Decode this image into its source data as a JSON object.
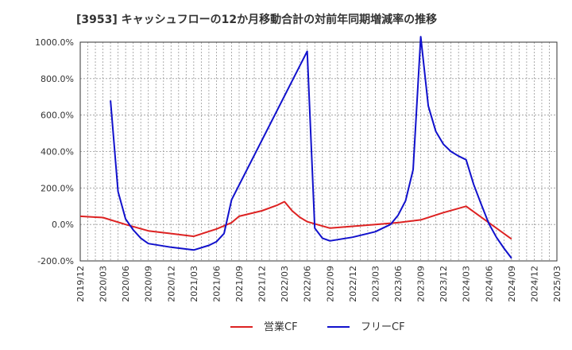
{
  "chart_data": {
    "type": "line",
    "title": "[3953]  キャッシュフローの12か月移動合計の対前年同期増減率の推移",
    "xlabel": "",
    "ylabel": "",
    "ylim": [
      -200,
      1000
    ],
    "y_ticks": [
      1000,
      800,
      600,
      400,
      200,
      0,
      -200
    ],
    "y_tick_labels": [
      "1000.0%",
      "800.0%",
      "600.0%",
      "400.0%",
      "200.0%",
      "0.0%",
      "-200.0%"
    ],
    "x_range": [
      "2019/12",
      "2025/03"
    ],
    "x_tick_labels": [
      "2019/12",
      "2020/03",
      "2020/06",
      "2020/09",
      "2020/12",
      "2021/03",
      "2021/06",
      "2021/09",
      "2021/12",
      "2022/03",
      "2022/06",
      "2022/09",
      "2022/12",
      "2023/03",
      "2023/06",
      "2023/09",
      "2023/12",
      "2024/03",
      "2024/06",
      "2024/09",
      "2024/12",
      "2025/03"
    ],
    "grid": true,
    "legend_position": "bottom-center",
    "series": [
      {
        "name": "営業CF",
        "color": "#dd2222",
        "points": [
          {
            "x": "2019/12",
            "y": 45
          },
          {
            "x": "2020/02",
            "y": 40
          },
          {
            "x": "2020/03",
            "y": 38
          },
          {
            "x": "2020/06",
            "y": 0
          },
          {
            "x": "2020/09",
            "y": -35
          },
          {
            "x": "2020/12",
            "y": -50
          },
          {
            "x": "2021/03",
            "y": -65
          },
          {
            "x": "2021/06",
            "y": -25
          },
          {
            "x": "2021/08",
            "y": 10
          },
          {
            "x": "2021/09",
            "y": 45
          },
          {
            "x": "2021/12",
            "y": 75
          },
          {
            "x": "2022/02",
            "y": 105
          },
          {
            "x": "2022/03",
            "y": 125
          },
          {
            "x": "2022/04",
            "y": 75
          },
          {
            "x": "2022/05",
            "y": 40
          },
          {
            "x": "2022/06",
            "y": 15
          },
          {
            "x": "2022/09",
            "y": -20
          },
          {
            "x": "2022/12",
            "y": -10
          },
          {
            "x": "2023/03",
            "y": 0
          },
          {
            "x": "2023/06",
            "y": 10
          },
          {
            "x": "2023/09",
            "y": 25
          },
          {
            "x": "2023/12",
            "y": 65
          },
          {
            "x": "2024/03",
            "y": 100
          },
          {
            "x": "2024/06",
            "y": 10
          },
          {
            "x": "2024/09",
            "y": -80
          }
        ]
      },
      {
        "name": "フリーCF",
        "color": "#1111cc",
        "points": [
          {
            "x": "2020/04",
            "y": 680
          },
          {
            "x": "2020/05",
            "y": 180
          },
          {
            "x": "2020/06",
            "y": 30
          },
          {
            "x": "2020/07",
            "y": -30
          },
          {
            "x": "2020/08",
            "y": -75
          },
          {
            "x": "2020/09",
            "y": -105
          },
          {
            "x": "2020/12",
            "y": -125
          },
          {
            "x": "2021/03",
            "y": -140
          },
          {
            "x": "2021/05",
            "y": -115
          },
          {
            "x": "2021/06",
            "y": -95
          },
          {
            "x": "2021/07",
            "y": -50
          },
          {
            "x": "2021/08",
            "y": 135
          },
          {
            "x": "2022/06",
            "y": 950
          },
          {
            "x": "2022/07",
            "y": -20
          },
          {
            "x": "2022/08",
            "y": -75
          },
          {
            "x": "2022/09",
            "y": -90
          },
          {
            "x": "2022/12",
            "y": -70
          },
          {
            "x": "2023/03",
            "y": -40
          },
          {
            "x": "2023/05",
            "y": 0
          },
          {
            "x": "2023/06",
            "y": 50
          },
          {
            "x": "2023/07",
            "y": 130
          },
          {
            "x": "2023/08",
            "y": 300
          },
          {
            "x": "2023/09",
            "y": 1030
          },
          {
            "x": "2023/10",
            "y": 650
          },
          {
            "x": "2023/11",
            "y": 510
          },
          {
            "x": "2023/12",
            "y": 440
          },
          {
            "x": "2024/01",
            "y": 400
          },
          {
            "x": "2024/02",
            "y": 375
          },
          {
            "x": "2024/03",
            "y": 355
          },
          {
            "x": "2024/04",
            "y": 220
          },
          {
            "x": "2024/05",
            "y": 110
          },
          {
            "x": "2024/06",
            "y": 5
          },
          {
            "x": "2024/07",
            "y": -70
          },
          {
            "x": "2024/08",
            "y": -130
          },
          {
            "x": "2024/09",
            "y": -185
          }
        ]
      }
    ]
  }
}
